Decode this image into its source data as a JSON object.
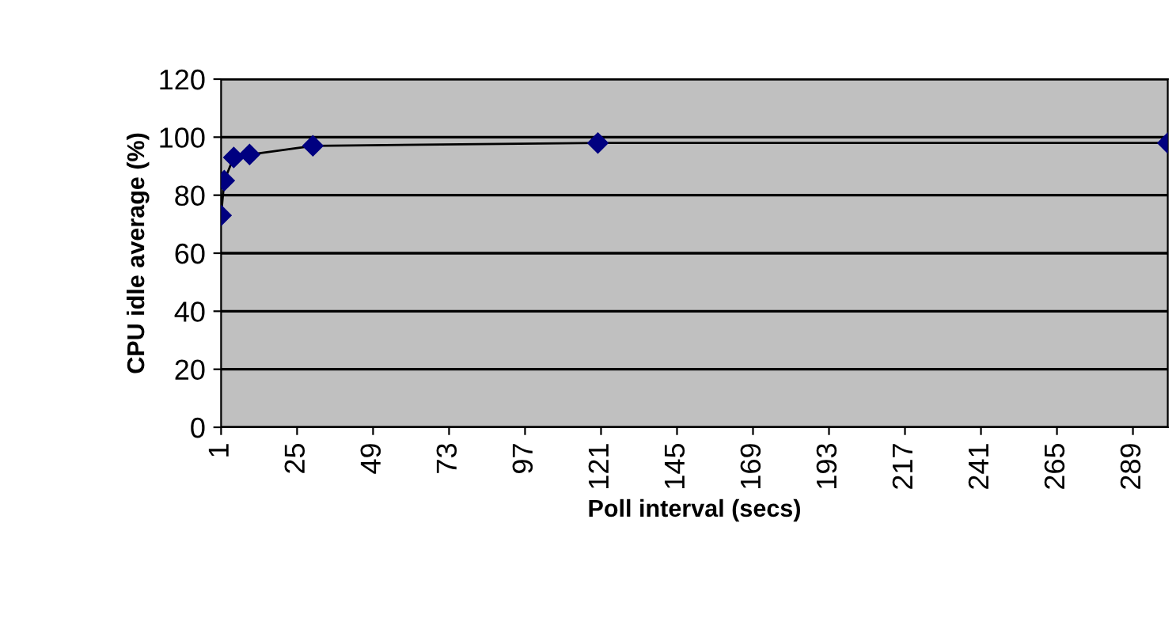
{
  "chart_data": {
    "type": "line",
    "xlabel": "Poll interval (secs)",
    "ylabel": "CPU idle average (%)",
    "x": [
      1,
      2,
      5,
      10,
      30,
      120,
      300
    ],
    "series": [
      {
        "color": "#000080",
        "values": [
          73,
          85,
          93,
          94,
          97,
          98,
          98
        ]
      }
    ],
    "xlim": [
      1,
      300
    ],
    "xticks": [
      1,
      25,
      49,
      73,
      97,
      121,
      145,
      169,
      193,
      217,
      241,
      265,
      289
    ],
    "ylim": [
      0,
      120
    ],
    "yticks": [
      0,
      20,
      40,
      60,
      80,
      100,
      120
    ],
    "grid": "y",
    "marker": "diamond",
    "line_style": "solid",
    "legend": false
  }
}
